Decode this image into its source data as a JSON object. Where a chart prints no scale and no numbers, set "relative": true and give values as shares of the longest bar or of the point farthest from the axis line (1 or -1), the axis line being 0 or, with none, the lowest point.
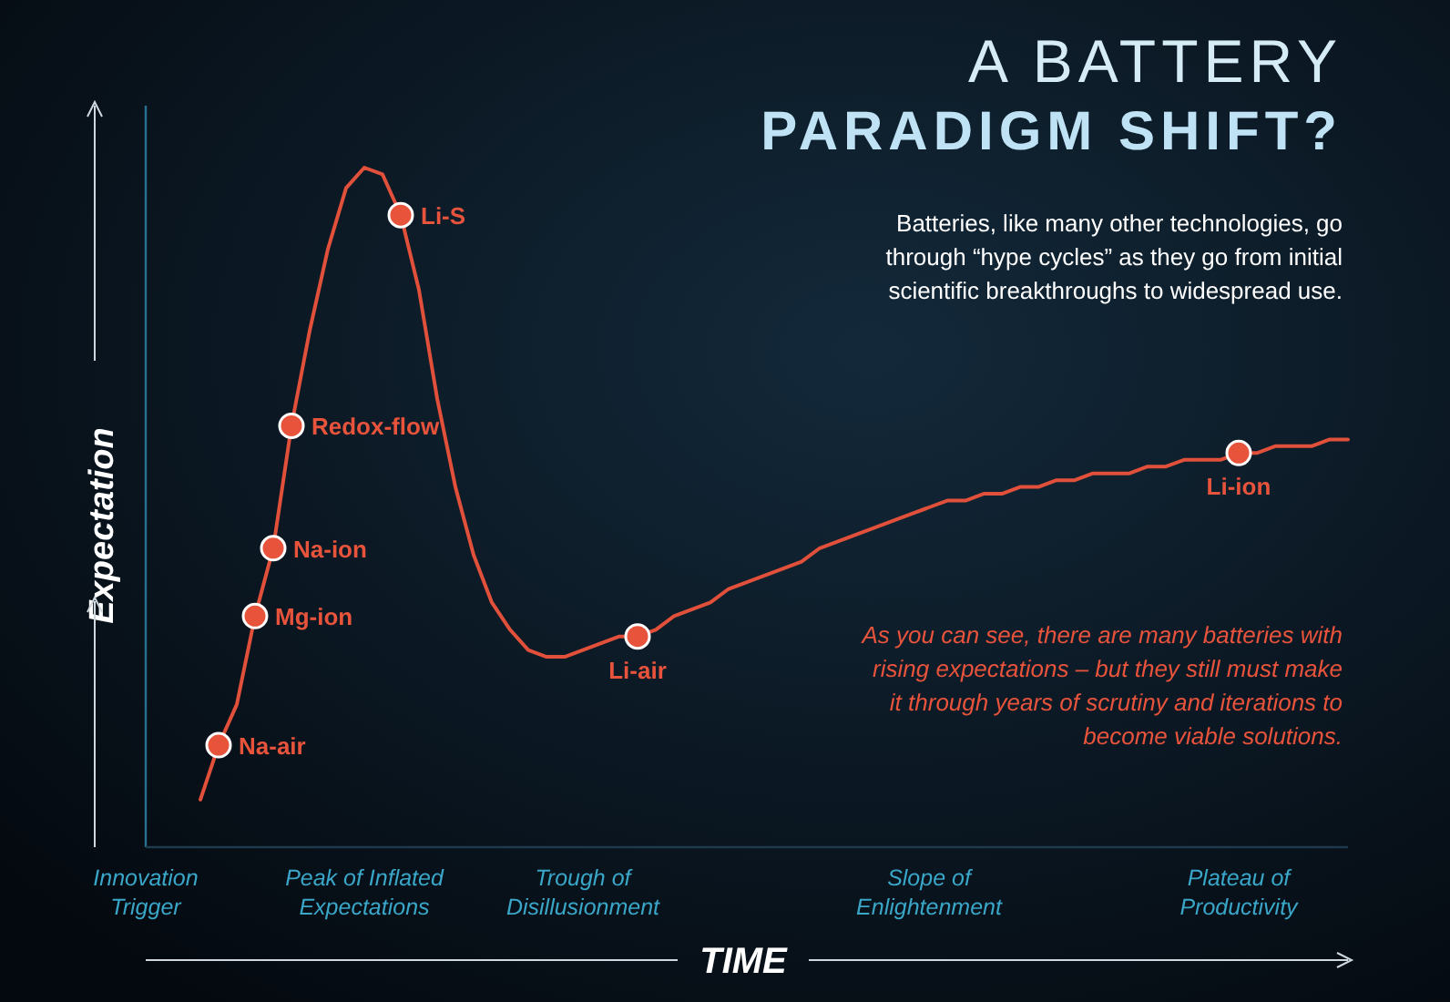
{
  "chart_data": {
    "type": "line",
    "title": "A BATTERY",
    "subtitle": "PARADIGM SHIFT?",
    "xlabel": "TIME",
    "ylabel": "Expectation",
    "relative": true,
    "categories": [
      "Innovation Trigger",
      null,
      null,
      null,
      null,
      null,
      null,
      null,
      null,
      null,
      null,
      null,
      "Peak of Inflated Expectations",
      null,
      null,
      null,
      null,
      null,
      null,
      null,
      null,
      null,
      null,
      null,
      "Trough of Disillusionment",
      null,
      null,
      null,
      null,
      null,
      null,
      null,
      null,
      null,
      null,
      null,
      null,
      null,
      null,
      null,
      null,
      null,
      null,
      "Slope of Enlightenment",
      null,
      null,
      null,
      null,
      null,
      null,
      null,
      null,
      null,
      null,
      null,
      null,
      null,
      null,
      null,
      null,
      "Plateau of Productivity",
      null,
      null,
      null,
      null,
      null,
      null
    ],
    "series": [
      {
        "color": "#e0503a",
        "values": [
          null,
          null,
          null,
          0.07,
          0.15,
          0.21,
          0.34,
          0.44,
          0.62,
          0.76,
          0.88,
          0.97,
          1,
          0.99,
          0.93,
          0.82,
          0.66,
          0.53,
          0.43,
          0.36,
          0.32,
          0.29,
          0.28,
          0.28,
          0.29,
          0.3,
          0.31,
          0.31,
          0.32,
          0.34,
          0.35,
          0.36,
          0.38,
          0.39,
          0.4,
          0.41,
          0.42,
          0.44,
          0.45,
          0.46,
          0.47,
          0.48,
          0.49,
          0.5,
          0.51,
          0.51,
          0.52,
          0.52,
          0.53,
          0.53,
          0.54,
          0.54,
          0.55,
          0.55,
          0.55,
          0.56,
          0.56,
          0.57,
          0.57,
          0.57,
          0.58,
          0.58,
          0.59,
          0.59,
          0.59,
          0.6,
          0.6
        ]
      },
      {
        "type": "scatter",
        "name": "Na-air",
        "color": "#e8533c",
        "marker": "circle",
        "values": [
          null,
          null,
          null,
          null,
          0.15,
          null,
          null,
          null,
          null,
          null,
          null,
          null,
          null,
          null,
          null,
          null,
          null,
          null,
          null,
          null,
          null,
          null,
          null,
          null,
          null,
          null,
          null,
          null,
          null,
          null,
          null,
          null,
          null,
          null,
          null,
          null,
          null,
          null,
          null,
          null,
          null,
          null,
          null,
          null,
          null,
          null,
          null,
          null,
          null,
          null,
          null,
          null,
          null,
          null,
          null,
          null,
          null,
          null,
          null,
          null,
          null,
          null,
          null,
          null,
          null,
          null,
          null
        ]
      },
      {
        "type": "scatter",
        "name": "Mg-ion",
        "color": "#e8533c",
        "marker": "circle",
        "values": [
          null,
          null,
          null,
          null,
          null,
          null,
          0.34,
          null,
          null,
          null,
          null,
          null,
          null,
          null,
          null,
          null,
          null,
          null,
          null,
          null,
          null,
          null,
          null,
          null,
          null,
          null,
          null,
          null,
          null,
          null,
          null,
          null,
          null,
          null,
          null,
          null,
          null,
          null,
          null,
          null,
          null,
          null,
          null,
          null,
          null,
          null,
          null,
          null,
          null,
          null,
          null,
          null,
          null,
          null,
          null,
          null,
          null,
          null,
          null,
          null,
          null,
          null,
          null,
          null,
          null,
          null,
          null
        ]
      },
      {
        "type": "scatter",
        "name": "Na-ion",
        "color": "#e8533c",
        "marker": "circle",
        "values": [
          null,
          null,
          null,
          null,
          null,
          null,
          null,
          0.44,
          null,
          null,
          null,
          null,
          null,
          null,
          null,
          null,
          null,
          null,
          null,
          null,
          null,
          null,
          null,
          null,
          null,
          null,
          null,
          null,
          null,
          null,
          null,
          null,
          null,
          null,
          null,
          null,
          null,
          null,
          null,
          null,
          null,
          null,
          null,
          null,
          null,
          null,
          null,
          null,
          null,
          null,
          null,
          null,
          null,
          null,
          null,
          null,
          null,
          null,
          null,
          null,
          null,
          null,
          null,
          null,
          null,
          null,
          null
        ]
      },
      {
        "type": "scatter",
        "name": "Redox-flow",
        "color": "#e8533c",
        "marker": "circle",
        "values": [
          null,
          null,
          null,
          null,
          null,
          null,
          null,
          null,
          0.62,
          null,
          null,
          null,
          null,
          null,
          null,
          null,
          null,
          null,
          null,
          null,
          null,
          null,
          null,
          null,
          null,
          null,
          null,
          null,
          null,
          null,
          null,
          null,
          null,
          null,
          null,
          null,
          null,
          null,
          null,
          null,
          null,
          null,
          null,
          null,
          null,
          null,
          null,
          null,
          null,
          null,
          null,
          null,
          null,
          null,
          null,
          null,
          null,
          null,
          null,
          null,
          null,
          null,
          null,
          null,
          null,
          null,
          null
        ]
      },
      {
        "type": "scatter",
        "name": "Li-S",
        "color": "#e8533c",
        "marker": "circle",
        "values": [
          null,
          null,
          null,
          null,
          null,
          null,
          null,
          null,
          null,
          null,
          null,
          null,
          null,
          null,
          0.93,
          null,
          null,
          null,
          null,
          null,
          null,
          null,
          null,
          null,
          null,
          null,
          null,
          null,
          null,
          null,
          null,
          null,
          null,
          null,
          null,
          null,
          null,
          null,
          null,
          null,
          null,
          null,
          null,
          null,
          null,
          null,
          null,
          null,
          null,
          null,
          null,
          null,
          null,
          null,
          null,
          null,
          null,
          null,
          null,
          null,
          null,
          null,
          null,
          null,
          null,
          null,
          null
        ]
      },
      {
        "type": "scatter",
        "name": "Li-air",
        "color": "#e8533c",
        "marker": "circle",
        "values": [
          null,
          null,
          null,
          null,
          null,
          null,
          null,
          null,
          null,
          null,
          null,
          null,
          null,
          null,
          null,
          null,
          null,
          null,
          null,
          null,
          null,
          null,
          null,
          null,
          null,
          null,
          null,
          0.31,
          null,
          null,
          null,
          null,
          null,
          null,
          null,
          null,
          null,
          null,
          null,
          null,
          null,
          null,
          null,
          null,
          null,
          null,
          null,
          null,
          null,
          null,
          null,
          null,
          null,
          null,
          null,
          null,
          null,
          null,
          null,
          null,
          null,
          null,
          null,
          null,
          null,
          null,
          null
        ]
      },
      {
        "type": "scatter",
        "name": "Li-ion",
        "color": "#e8533c",
        "marker": "circle",
        "values": [
          null,
          null,
          null,
          null,
          null,
          null,
          null,
          null,
          null,
          null,
          null,
          null,
          null,
          null,
          null,
          null,
          null,
          null,
          null,
          null,
          null,
          null,
          null,
          null,
          null,
          null,
          null,
          null,
          null,
          null,
          null,
          null,
          null,
          null,
          null,
          null,
          null,
          null,
          null,
          null,
          null,
          null,
          null,
          null,
          null,
          null,
          null,
          null,
          null,
          null,
          null,
          null,
          null,
          null,
          null,
          null,
          null,
          null,
          null,
          null,
          0.58,
          null,
          null,
          null,
          null,
          null,
          null
        ]
      }
    ],
    "annotations": [
      "Batteries, like many other technologies, go through “hype cycles” as they go from initial scientific breakthroughs to widespread use.",
      "As you can see, there are many batteries with rising expectations – but they still must make it through years of scrutiny and iterations to become viable solutions."
    ]
  }
}
